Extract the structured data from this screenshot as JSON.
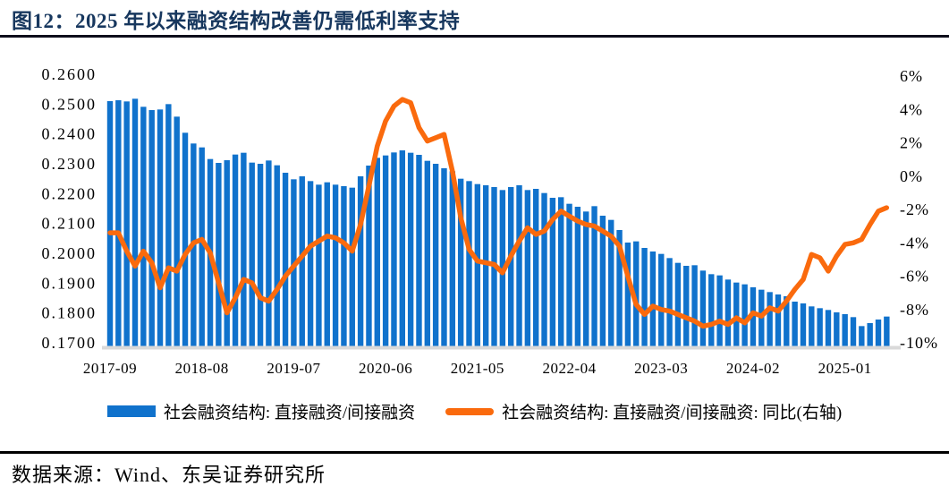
{
  "header": {
    "title": "图12：2025 年以来融资结构改善仍需低利率支持"
  },
  "footer": {
    "source": "数据来源：Wind、东吴证券研究所"
  },
  "colors": {
    "bar_blue": "#1072CC",
    "line_orange": "#FA6A0D",
    "title_navy": "#17375E",
    "axis_baseline_gray": "#D9D9D9"
  },
  "legend": {
    "items": [
      {
        "label": "社会融资结构: 直接融资/间接融资",
        "type": "bar",
        "color": "#1072CC"
      },
      {
        "label": "社会融资结构: 直接融资/间接融资: 同比(右轴)",
        "type": "line",
        "color": "#FA6A0D"
      }
    ]
  },
  "chart_data": {
    "type": "bar",
    "subtype": "bar+line dual axis",
    "title": "图12：2025 年以来融资结构改善仍需低利率支持",
    "xlabel": "",
    "ylabel_left": "社会融资结构: 直接融资/间接融资",
    "ylabel_right": "同比 (%)",
    "grid": false,
    "legend_position": "bottom",
    "x": [
      "2017-09",
      "2017-10",
      "2017-11",
      "2017-12",
      "2018-01",
      "2018-02",
      "2018-03",
      "2018-04",
      "2018-05",
      "2018-06",
      "2018-07",
      "2018-08",
      "2018-09",
      "2018-10",
      "2018-11",
      "2018-12",
      "2019-01",
      "2019-02",
      "2019-03",
      "2019-04",
      "2019-05",
      "2019-06",
      "2019-07",
      "2019-08",
      "2019-09",
      "2019-10",
      "2019-11",
      "2019-12",
      "2020-01",
      "2020-02",
      "2020-03",
      "2020-04",
      "2020-05",
      "2020-06",
      "2020-07",
      "2020-08",
      "2020-09",
      "2020-10",
      "2020-11",
      "2020-12",
      "2021-01",
      "2021-02",
      "2021-03",
      "2021-04",
      "2021-05",
      "2021-06",
      "2021-07",
      "2021-08",
      "2021-09",
      "2021-10",
      "2021-11",
      "2021-12",
      "2022-01",
      "2022-02",
      "2022-03",
      "2022-04",
      "2022-05",
      "2022-06",
      "2022-07",
      "2022-08",
      "2022-09",
      "2022-10",
      "2022-11",
      "2022-12",
      "2023-01",
      "2023-02",
      "2023-03",
      "2023-04",
      "2023-05",
      "2023-06",
      "2023-07",
      "2023-08",
      "2023-09",
      "2023-10",
      "2023-11",
      "2023-12",
      "2024-01",
      "2024-02",
      "2024-03",
      "2024-04",
      "2024-05",
      "2024-06",
      "2024-07",
      "2024-08",
      "2024-09",
      "2024-10",
      "2024-11",
      "2024-12",
      "2025-01",
      "2025-02",
      "2025-03",
      "2025-04",
      "2025-05",
      "2025-06"
    ],
    "x_tick_labels": [
      "2017-09",
      "2018-08",
      "2019-07",
      "2020-06",
      "2021-05",
      "2022-04",
      "2023-03",
      "2024-02",
      "2025-01"
    ],
    "x_tick_interval": 11,
    "series": [
      {
        "name": "社会融资结构: 直接融资/间接融资",
        "type": "bar",
        "axis": "left",
        "color": "#1072CC",
        "values": [
          0.251,
          0.2513,
          0.2509,
          0.2518,
          0.2491,
          0.248,
          0.2482,
          0.25,
          0.2458,
          0.2404,
          0.2368,
          0.2355,
          0.2316,
          0.2303,
          0.2312,
          0.2331,
          0.2337,
          0.2304,
          0.23,
          0.2311,
          0.2295,
          0.227,
          0.2248,
          0.2258,
          0.2242,
          0.223,
          0.2238,
          0.223,
          0.2225,
          0.222,
          0.2258,
          0.2294,
          0.232,
          0.2328,
          0.2338,
          0.2345,
          0.2337,
          0.233,
          0.231,
          0.23,
          0.2285,
          0.2275,
          0.225,
          0.2242,
          0.2232,
          0.2228,
          0.2222,
          0.2212,
          0.2222,
          0.2228,
          0.2212,
          0.2216,
          0.2202,
          0.2186,
          0.2188,
          0.2166,
          0.2156,
          0.214,
          0.2158,
          0.2126,
          0.2112,
          0.2078,
          0.2036,
          0.204,
          0.2018,
          0.2006,
          0.1998,
          0.1984,
          0.1968,
          0.1958,
          0.196,
          0.1942,
          0.193,
          0.1926,
          0.1912,
          0.1902,
          0.1896,
          0.1886,
          0.1878,
          0.187,
          0.1862,
          0.1856,
          0.1838,
          0.1832,
          0.1822,
          0.1816,
          0.181,
          0.1802,
          0.1796,
          0.1786,
          0.1756,
          0.1766,
          0.1778,
          0.1788
        ]
      },
      {
        "name": "社会融资结构: 直接融资/间接融资: 同比(右轴)",
        "type": "line",
        "axis": "right",
        "unit": "%",
        "color": "#FA6A0D",
        "values": [
          -3.4,
          -3.4,
          -4.5,
          -5.4,
          -4.5,
          -5.2,
          -6.7,
          -5.5,
          -5.7,
          -4.7,
          -4.0,
          -3.8,
          -4.6,
          -6.4,
          -8.2,
          -7.3,
          -6.2,
          -6.4,
          -7.3,
          -7.5,
          -6.8,
          -6.0,
          -5.4,
          -4.8,
          -4.2,
          -3.9,
          -3.6,
          -3.7,
          -4.0,
          -4.5,
          -2.9,
          -0.6,
          1.8,
          3.3,
          4.2,
          4.6,
          4.4,
          2.9,
          2.1,
          2.3,
          2.5,
          0.3,
          -2.5,
          -4.4,
          -5.1,
          -5.2,
          -5.3,
          -5.8,
          -4.8,
          -3.9,
          -3.1,
          -3.5,
          -3.3,
          -2.6,
          -2.1,
          -2.4,
          -2.7,
          -2.9,
          -3.0,
          -3.3,
          -3.6,
          -4.2,
          -6.0,
          -7.7,
          -8.3,
          -7.8,
          -8.0,
          -8.1,
          -8.3,
          -8.5,
          -8.7,
          -9.0,
          -8.9,
          -8.7,
          -8.9,
          -8.5,
          -8.8,
          -8.2,
          -8.4,
          -7.9,
          -8.1,
          -7.5,
          -6.8,
          -6.2,
          -4.7,
          -4.9,
          -5.7,
          -4.8,
          -4.1,
          -4.0,
          -3.8,
          -2.9,
          -2.1,
          -1.9
        ]
      }
    ],
    "left_axis": {
      "min": 0.17,
      "max": 0.26,
      "ticks": [
        "0.2600",
        "0.2500",
        "0.2400",
        "0.2300",
        "0.2200",
        "0.2100",
        "0.2000",
        "0.1900",
        "0.1800",
        "0.1700"
      ]
    },
    "right_axis": {
      "min": -10,
      "max": 6,
      "ticks": [
        "6%",
        "4%",
        "2%",
        "0%",
        "-2%",
        "-4%",
        "-6%",
        "-8%",
        "-10%"
      ]
    }
  }
}
